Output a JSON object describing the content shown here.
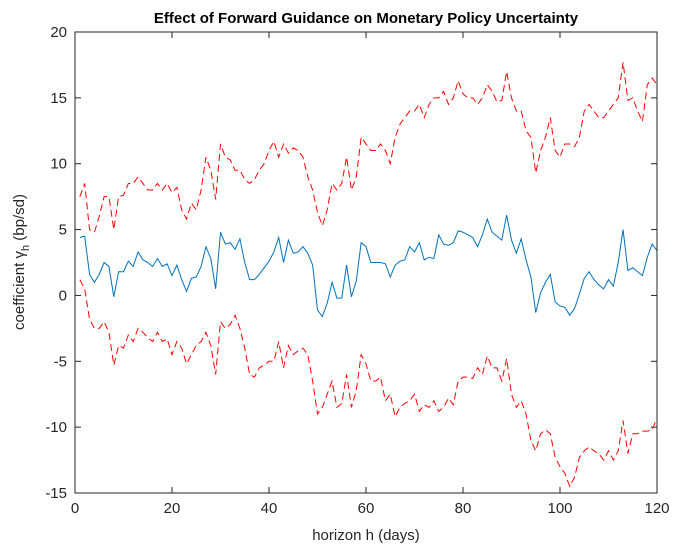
{
  "chart_data": {
    "type": "line",
    "title": "Effect of Forward Guidance on Monetary Policy Uncertainty",
    "xlabel": "horizon h (days)",
    "ylabel": {
      "text": "coefficient γ",
      "subscript": "h",
      "suffix": " (bp/sd)"
    },
    "x": [
      1,
      2,
      3,
      4,
      5,
      6,
      7,
      8,
      9,
      10,
      11,
      12,
      13,
      14,
      15,
      16,
      17,
      18,
      19,
      20,
      21,
      22,
      23,
      24,
      25,
      26,
      27,
      28,
      29,
      30,
      31,
      32,
      33,
      34,
      35,
      36,
      37,
      38,
      39,
      40,
      41,
      42,
      43,
      44,
      45,
      46,
      47,
      48,
      49,
      50,
      51,
      52,
      53,
      54,
      55,
      56,
      57,
      58,
      59,
      60,
      61,
      62,
      63,
      64,
      65,
      66,
      67,
      68,
      69,
      70,
      71,
      72,
      73,
      74,
      75,
      76,
      77,
      78,
      79,
      80,
      81,
      82,
      83,
      84,
      85,
      86,
      87,
      88,
      89,
      90,
      91,
      92,
      93,
      94,
      95,
      96,
      97,
      98,
      99,
      100,
      101,
      102,
      103,
      104,
      105,
      106,
      107,
      108,
      109,
      110,
      111,
      112,
      113,
      114,
      115,
      116,
      117,
      118,
      119,
      120
    ],
    "series": [
      {
        "color": "#0072bd",
        "dashed": false,
        "values": [
          4.4,
          4.5,
          1.6,
          1.0,
          1.6,
          2.5,
          2.2,
          -0.1,
          1.8,
          1.8,
          2.6,
          2.2,
          3.3,
          2.7,
          2.5,
          2.2,
          2.8,
          2.2,
          2.4,
          1.5,
          2.3,
          1.2,
          0.3,
          1.3,
          1.4,
          2.2,
          3.7,
          2.8,
          0.5,
          4.8,
          3.9,
          4.0,
          3.5,
          4.3,
          2.5,
          1.2,
          1.2,
          1.6,
          2.1,
          2.6,
          3.3,
          4.4,
          2.5,
          4.2,
          3.2,
          3.3,
          3.7,
          3.2,
          2.3,
          -1.1,
          -1.6,
          -0.6,
          1.0,
          -0.2,
          -0.2,
          2.3,
          -0.1,
          1.1,
          4.0,
          3.7,
          2.5,
          2.5,
          2.5,
          2.4,
          1.4,
          2.3,
          2.6,
          2.7,
          3.7,
          3.3,
          4.0,
          2.7,
          2.9,
          2.8,
          4.6,
          3.9,
          3.8,
          4.0,
          4.9,
          4.8,
          4.6,
          4.4,
          3.7,
          4.6,
          5.8,
          4.8,
          4.5,
          4.2,
          6.1,
          4.2,
          3.2,
          4.3,
          2.7,
          1.4,
          -1.3,
          0.2,
          1.0,
          1.6,
          -0.5,
          -0.8,
          -0.9,
          -1.5,
          -1.0,
          0.1,
          1.3,
          1.8,
          1.2,
          0.8,
          0.5,
          1.2,
          0.7,
          2.5,
          5.0,
          1.9,
          2.1,
          1.8,
          1.5,
          2.9,
          3.9,
          3.4
        ]
      },
      {
        "color": "#ff0000",
        "dashed": true,
        "values": [
          7.5,
          8.5,
          5.0,
          4.8,
          6.0,
          7.5,
          7.5,
          5.0,
          7.5,
          7.6,
          8.5,
          8.5,
          9.0,
          8.5,
          8.0,
          8.0,
          8.5,
          8.0,
          8.5,
          7.8,
          8.2,
          6.5,
          5.8,
          7.0,
          6.5,
          8.0,
          10.5,
          9.5,
          7.3,
          11.5,
          10.5,
          10.3,
          9.5,
          9.5,
          8.8,
          8.5,
          8.8,
          9.5,
          10.0,
          11.0,
          11.7,
          10.5,
          11.5,
          10.8,
          11.2,
          11.0,
          10.5,
          9.0,
          8.0,
          6.3,
          5.3,
          6.5,
          8.5,
          8.0,
          8.5,
          10.5,
          8.0,
          9.0,
          12.0,
          11.5,
          11.0,
          11.0,
          11.5,
          11.0,
          10.0,
          12.0,
          13.0,
          13.5,
          14.0,
          14.0,
          14.5,
          13.5,
          14.5,
          15.0,
          15.0,
          15.5,
          14.5,
          15.0,
          16.3,
          15.3,
          15.0,
          15.0,
          14.5,
          15.0,
          16.0,
          15.5,
          14.7,
          14.8,
          17.0,
          15.0,
          14.0,
          14.0,
          12.5,
          12.0,
          9.3,
          11.0,
          12.0,
          13.5,
          11.0,
          10.5,
          11.5,
          11.5,
          11.3,
          12.0,
          14.0,
          14.5,
          14.0,
          13.5,
          13.5,
          14.0,
          14.5,
          15.0,
          17.7,
          14.8,
          15.0,
          14.0,
          13.2,
          16.0,
          16.5,
          16.0
        ]
      },
      {
        "color": "#ff0000",
        "dashed": true,
        "values": [
          1.2,
          0.5,
          -1.8,
          -2.5,
          -2.5,
          -2.0,
          -2.8,
          -5.3,
          -3.8,
          -4.0,
          -3.0,
          -3.5,
          -2.5,
          -2.8,
          -3.2,
          -3.5,
          -2.8,
          -3.5,
          -3.3,
          -4.5,
          -3.5,
          -4.0,
          -5.2,
          -4.5,
          -3.8,
          -3.5,
          -2.8,
          -3.8,
          -6.0,
          -2.0,
          -2.5,
          -2.2,
          -1.5,
          -2.5,
          -4.0,
          -6.0,
          -6.2,
          -5.5,
          -5.3,
          -5.0,
          -5.0,
          -3.5,
          -5.5,
          -3.8,
          -4.5,
          -4.2,
          -4.0,
          -4.5,
          -6.5,
          -9.0,
          -8.5,
          -7.5,
          -6.5,
          -8.5,
          -8.2,
          -6.0,
          -8.5,
          -7.2,
          -4.5,
          -5.2,
          -6.5,
          -6.5,
          -6.2,
          -8.0,
          -7.5,
          -9.2,
          -8.5,
          -8.2,
          -8.0,
          -7.5,
          -8.8,
          -8.3,
          -8.5,
          -8.0,
          -8.8,
          -8.5,
          -7.8,
          -8.3,
          -6.5,
          -6.2,
          -6.2,
          -6.3,
          -5.5,
          -6.0,
          -4.6,
          -5.5,
          -5.5,
          -6.5,
          -4.8,
          -7.5,
          -8.5,
          -8.0,
          -9.0,
          -11.0,
          -11.8,
          -10.5,
          -10.2,
          -10.5,
          -12.3,
          -13.0,
          -13.5,
          -14.5,
          -13.8,
          -12.3,
          -11.8,
          -11.5,
          -11.8,
          -12.0,
          -12.5,
          -11.8,
          -12.5,
          -11.8,
          -9.5,
          -12.0,
          -10.5,
          -10.5,
          -10.3,
          -10.3,
          -10.2,
          -9.3
        ]
      }
    ],
    "xlim": [
      0,
      120
    ],
    "xticks": [
      0,
      20,
      40,
      60,
      80,
      100,
      120
    ],
    "ylim": [
      -15,
      20
    ],
    "yticks": [
      -15,
      -10,
      -5,
      0,
      5,
      10,
      15,
      20
    ]
  }
}
